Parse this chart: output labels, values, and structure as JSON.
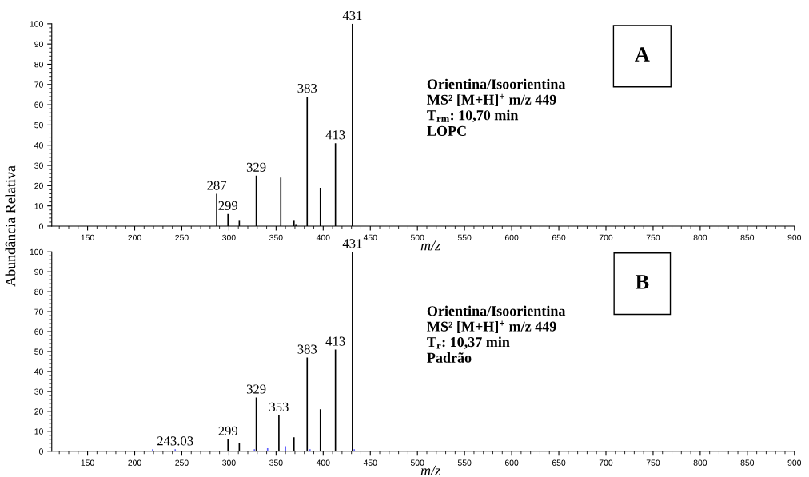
{
  "chart_data": [
    {
      "type": "bar",
      "xlabel": "m/z",
      "ylabel": "Abundância Relativa",
      "xlim": [
        112,
        900
      ],
      "ylim": [
        0,
        100
      ],
      "xticks": [
        150,
        200,
        250,
        300,
        350,
        400,
        450,
        500,
        550,
        600,
        650,
        700,
        750,
        800,
        850,
        900
      ],
      "yticks": [
        0,
        10,
        20,
        30,
        40,
        50,
        60,
        70,
        80,
        90,
        100
      ],
      "series": [
        {
          "color": "#000000",
          "x": [
            287,
            299,
            311,
            329,
            355,
            361,
            369,
            371,
            383,
            397,
            413,
            431
          ],
          "values": [
            16,
            6,
            3,
            25,
            24,
            null,
            3,
            1,
            64,
            19,
            41,
            100
          ]
        }
      ],
      "annotations": [
        "A",
        "Orientina/Isoorientina\nMS² [M+H]$^{+}$ m/z 449\nT$_{rm}$: 10,70 min\nLOPC",
        {
          "text": "287",
          "x": 287,
          "y": 16
        },
        {
          "text": "299",
          "x": 299,
          "y": 6
        },
        {
          "text": "329",
          "x": 329,
          "y": 25
        },
        {
          "text": "383",
          "x": 383,
          "y": 64
        },
        {
          "text": "413",
          "x": 413,
          "y": 41
        },
        {
          "text": "431",
          "x": 431,
          "y": 100
        }
      ]
    },
    {
      "type": "bar",
      "xlabel": "m/z",
      "xlim": [
        112,
        900
      ],
      "ylim": [
        0,
        100
      ],
      "xticks": [
        150,
        200,
        250,
        300,
        350,
        400,
        450,
        500,
        550,
        600,
        650,
        700,
        750,
        800,
        850,
        900
      ],
      "yticks": [
        0,
        10,
        20,
        30,
        40,
        50,
        60,
        70,
        80,
        90,
        100
      ],
      "series": [
        {
          "color": "#000000",
          "x": [
            299,
            311,
            329,
            353,
            369,
            383,
            397,
            413,
            431
          ],
          "values": [
            6,
            4,
            27,
            18,
            7,
            47,
            21,
            51,
            100
          ]
        },
        {
          "color": "#6060ff",
          "x": [
            219,
            243,
            327,
            341,
            360,
            373,
            386,
            433
          ],
          "values": [
            1,
            1,
            1,
            1.5,
            2.5,
            null,
            1,
            1
          ]
        }
      ],
      "annotations": [
        "B",
        "Orientina/Isoorientina\nMS² [M+H]$^{+}$ m/z 449\nT$_{r}$: 10,37 min\nPadrão",
        {
          "text": "243.03",
          "x": 243,
          "y": 1
        },
        {
          "text": "299",
          "x": 299,
          "y": 6
        },
        {
          "text": "329",
          "x": 329,
          "y": 27
        },
        {
          "text": "353",
          "x": 353,
          "y": 18
        },
        {
          "text": "383",
          "x": 383,
          "y": 47
        },
        {
          "text": "413",
          "x": 413,
          "y": 51
        },
        {
          "text": "431",
          "x": 431,
          "y": 100
        }
      ]
    }
  ]
}
